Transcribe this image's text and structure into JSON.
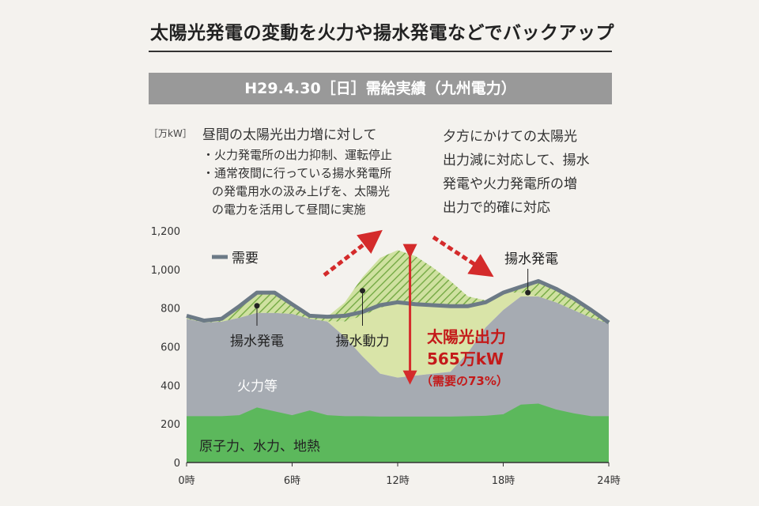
{
  "title": "太陽光発電の変動を火力や揚水発電などでバックアップ",
  "banner": "H29.4.30［日］需給実績（九州電力）",
  "annotations": {
    "left_heading": "昼間の太陽光出力増に対して",
    "left_bullet1": "・火力発電所の出力抑制、運転停止",
    "left_bullet2a": "・通常夜間に行っている揚水発電所",
    "left_bullet2b": "の発電用水の汲み上げを、太陽光",
    "left_bullet2c": "の電力を活用して昼間に実施",
    "right": "夕方にかけての太陽光\n出力減に対応して、揚水\n発電や火力発電所の増\n出力で的確に対応"
  },
  "chart_data": {
    "type": "area",
    "ylabel": "［万kW］",
    "ylim": [
      0,
      1200
    ],
    "yticks": [
      "0",
      "200",
      "400",
      "600",
      "800",
      "1,000",
      "1,200"
    ],
    "ytick_values": [
      0,
      200,
      400,
      600,
      800,
      1000,
      1200
    ],
    "xlim": [
      0,
      24
    ],
    "xticks": [
      "0時",
      "6時",
      "12時",
      "18時",
      "24時"
    ],
    "xtick_values": [
      0,
      6,
      12,
      18,
      24
    ],
    "hours": [
      0,
      1,
      2,
      3,
      4,
      5,
      6,
      7,
      8,
      9,
      10,
      11,
      12,
      13,
      14,
      15,
      16,
      17,
      18,
      19,
      20,
      21,
      22,
      23,
      24
    ],
    "series": [
      {
        "name": "原子力、水力、地熱",
        "color": "#5cb85c",
        "values": [
          240,
          240,
          240,
          245,
          285,
          265,
          245,
          270,
          245,
          240,
          240,
          238,
          238,
          238,
          238,
          238,
          240,
          242,
          250,
          300,
          305,
          275,
          255,
          240,
          240
        ]
      },
      {
        "name": "火力等",
        "color": "#a6abb2",
        "values": [
          745,
          725,
          730,
          750,
          775,
          775,
          770,
          745,
          730,
          650,
          550,
          460,
          440,
          450,
          460,
          470,
          570,
          700,
          790,
          860,
          860,
          830,
          790,
          750,
          720
        ]
      },
      {
        "name": "揚水動力",
        "color": "#d9e4a8",
        "values": [
          745,
          725,
          730,
          750,
          775,
          775,
          770,
          745,
          730,
          730,
          760,
          800,
          830,
          820,
          815,
          810,
          810,
          830,
          880,
          880,
          860,
          830,
          790,
          750,
          720
        ]
      },
      {
        "name": "太陽光出力",
        "color": "#8fc060",
        "values": [
          745,
          725,
          730,
          750,
          775,
          775,
          770,
          745,
          740,
          830,
          960,
          1060,
          1100,
          1070,
          1010,
          940,
          860,
          840,
          880,
          880,
          860,
          830,
          790,
          750,
          720
        ]
      },
      {
        "name": "需要",
        "color": "#6c7a86",
        "values": [
          760,
          735,
          745,
          810,
          880,
          880,
          820,
          760,
          755,
          760,
          780,
          815,
          830,
          820,
          815,
          810,
          810,
          830,
          880,
          910,
          940,
          900,
          850,
          790,
          725
        ]
      }
    ],
    "labels": {
      "demand_legend": "需要",
      "pumped_gen_left": "揚水発電",
      "pumped_power": "揚水動力",
      "pumped_gen_right": "揚水発電",
      "thermal": "火力等",
      "base": "原子力、水力、地熱",
      "solar_title": "太陽光出力",
      "solar_value": "565万kW",
      "solar_pct": "（需要の73%）"
    }
  }
}
